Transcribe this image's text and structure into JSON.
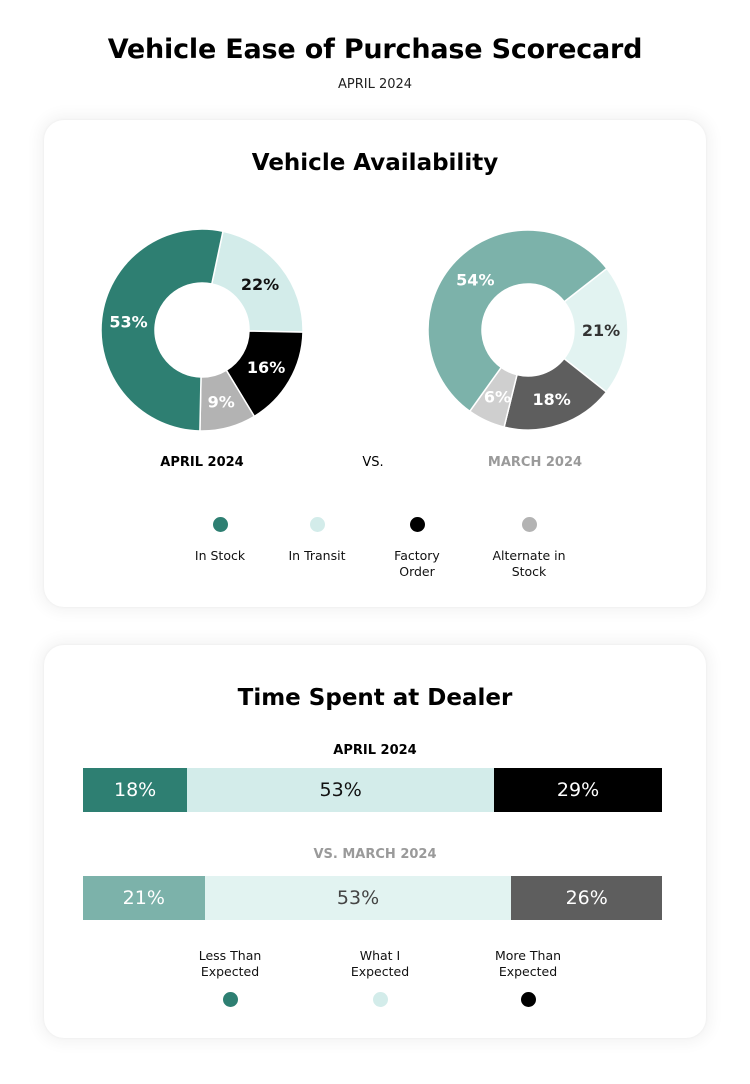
{
  "header": {
    "title": "Vehicle Ease of Purchase Scorecard",
    "subtitle": "APRIL 2024"
  },
  "availability": {
    "title": "Vehicle Availability",
    "vs_label": "VS.",
    "current_label": "APRIL 2024",
    "previous_label": "MARCH 2024",
    "current_label_color": "#000000",
    "previous_label_color": "#9a9a9a",
    "legend": [
      {
        "label": "In Stock",
        "color": "#2e7f72"
      },
      {
        "label": "In Transit",
        "color": "#d3ecea"
      },
      {
        "label": "Factory Order",
        "color": "#000000"
      },
      {
        "label": "Alternate in Stock",
        "color": "#b3b3b3"
      }
    ]
  },
  "time_at_dealer": {
    "title": "Time Spent at Dealer",
    "current_label": "APRIL 2024",
    "previous_label": "VS. MARCH 2024",
    "legend": [
      {
        "label": "Less Than Expected",
        "color": "#2e7f72"
      },
      {
        "label": "What I Expected",
        "color": "#d3ecea"
      },
      {
        "label": "More Than Expected",
        "color": "#000000"
      }
    ]
  },
  "chart_data": [
    {
      "type": "pie",
      "variant": "donut",
      "title": "Vehicle Availability — APRIL 2024",
      "categories": [
        "In Transit",
        "Factory Order",
        "Alternate in Stock",
        "In Stock"
      ],
      "values": [
        22,
        16,
        9,
        53
      ],
      "labels": [
        "22%",
        "16%",
        "9%",
        "53%"
      ],
      "colors": [
        "#d3ecea",
        "#000000",
        "#b3b3b3",
        "#2e7f72"
      ],
      "label_colors": [
        "#111111",
        "#ffffff",
        "#ffffff",
        "#ffffff"
      ],
      "start_angle_deg": 12
    },
    {
      "type": "pie",
      "variant": "donut",
      "title": "Vehicle Availability — MARCH 2024",
      "categories": [
        "In Transit",
        "Factory Order",
        "Alternate in Stock",
        "In Stock"
      ],
      "values": [
        21,
        18,
        6,
        54
      ],
      "labels": [
        "21%",
        "18%",
        "6%",
        "54%"
      ],
      "colors": [
        "#e2f3f1",
        "#5e5e5e",
        "#cfcfcf",
        "#7cb2aa"
      ],
      "label_colors": [
        "#333333",
        "#ffffff",
        "#ffffff",
        "#ffffff"
      ],
      "start_angle_deg": 52
    },
    {
      "type": "bar",
      "variant": "stacked-horizontal-100",
      "title": "Time Spent at Dealer",
      "categories": [
        "APRIL 2024",
        "VS. MARCH 2024"
      ],
      "series": [
        {
          "name": "Less Than Expected",
          "values": [
            18,
            21
          ],
          "labels": [
            "18%",
            "21%"
          ],
          "colors": [
            "#2e7f72",
            "#7cb2aa"
          ],
          "text_colors": [
            "#ffffff",
            "#ffffff"
          ]
        },
        {
          "name": "What I Expected",
          "values": [
            53,
            53
          ],
          "labels": [
            "53%",
            "53%"
          ],
          "colors": [
            "#d3ecea",
            "#e2f3f1"
          ],
          "text_colors": [
            "#111111",
            "#444444"
          ]
        },
        {
          "name": "More Than Expected",
          "values": [
            29,
            26
          ],
          "labels": [
            "29%",
            "26%"
          ],
          "colors": [
            "#000000",
            "#5e5e5e"
          ],
          "text_colors": [
            "#ffffff",
            "#ffffff"
          ]
        }
      ],
      "xlim": [
        0,
        100
      ]
    }
  ]
}
